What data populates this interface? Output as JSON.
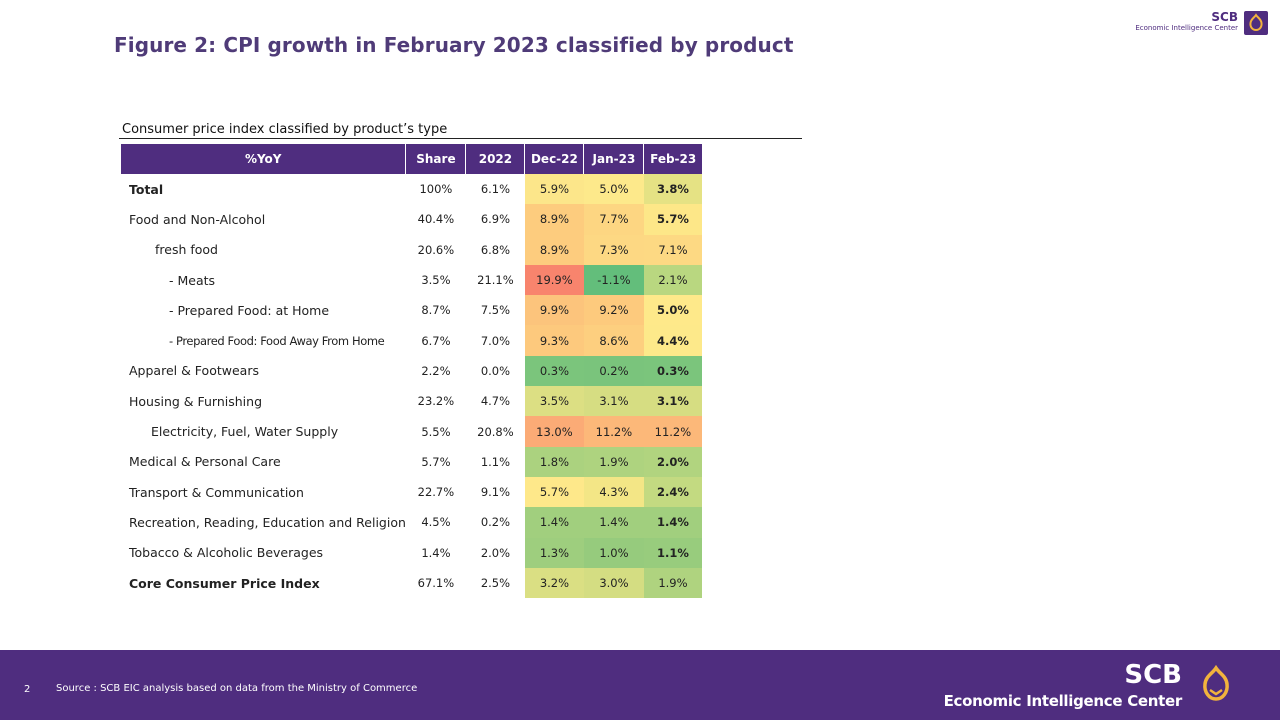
{
  "title": "Figure 2: CPI growth in February 2023 classified by product",
  "logo_top": {
    "brand": "SCB",
    "subtitle": "Economic Intelligence Center"
  },
  "table": {
    "caption": "Consumer price index classified by product’s type",
    "headers": [
      "%YoY",
      "Share",
      "2022",
      "Dec-22",
      "Jan-23",
      "Feb-23"
    ],
    "rows": [
      {
        "label": "Total",
        "share": "100%",
        "y2022": "6.1%",
        "dec22": "5.9%",
        "jan23": "5.0%",
        "feb23": "3.8%"
      },
      {
        "label": "Food and Non-Alcohol",
        "share": "40.4%",
        "y2022": "6.9%",
        "dec22": "8.9%",
        "jan23": "7.7%",
        "feb23": "5.7%"
      },
      {
        "label": "fresh food",
        "share": "20.6%",
        "y2022": "6.8%",
        "dec22": "8.9%",
        "jan23": "7.3%",
        "feb23": "7.1%"
      },
      {
        "label": "- Meats",
        "share": "3.5%",
        "y2022": "21.1%",
        "dec22": "19.9%",
        "jan23": "-1.1%",
        "feb23": "2.1%"
      },
      {
        "label": "- Prepared Food: at Home",
        "share": "8.7%",
        "y2022": "7.5%",
        "dec22": "9.9%",
        "jan23": "9.2%",
        "feb23": "5.0%"
      },
      {
        "label": "- Prepared Food: Food Away From Home",
        "share": "6.7%",
        "y2022": "7.0%",
        "dec22": "9.3%",
        "jan23": "8.6%",
        "feb23": "4.4%"
      },
      {
        "label": "Apparel & Footwears",
        "share": "2.2%",
        "y2022": "0.0%",
        "dec22": "0.3%",
        "jan23": "0.2%",
        "feb23": "0.3%"
      },
      {
        "label": "Housing & Furnishing",
        "share": "23.2%",
        "y2022": "4.7%",
        "dec22": "3.5%",
        "jan23": "3.1%",
        "feb23": "3.1%"
      },
      {
        "label": "Electricity, Fuel, Water Supply",
        "share": "5.5%",
        "y2022": "20.8%",
        "dec22": "13.0%",
        "jan23": "11.2%",
        "feb23": "11.2%"
      },
      {
        "label": "Medical & Personal Care",
        "share": "5.7%",
        "y2022": "1.1%",
        "dec22": "1.8%",
        "jan23": "1.9%",
        "feb23": "2.0%"
      },
      {
        "label": "Transport & Communication",
        "share": "22.7%",
        "y2022": "9.1%",
        "dec22": "5.7%",
        "jan23": "4.3%",
        "feb23": "2.4%"
      },
      {
        "label": "Recreation, Reading, Education and Religion",
        "share": "4.5%",
        "y2022": "0.2%",
        "dec22": "1.4%",
        "jan23": "1.4%",
        "feb23": "1.4%"
      },
      {
        "label": "Tobacco & Alcoholic Beverages",
        "share": "1.4%",
        "y2022": "2.0%",
        "dec22": "1.3%",
        "jan23": "1.0%",
        "feb23": "1.1%"
      },
      {
        "label": "Core Consumer Price Index",
        "share": "67.1%",
        "y2022": "2.5%",
        "dec22": "3.2%",
        "jan23": "3.0%",
        "feb23": "1.9%"
      }
    ]
  },
  "footer": {
    "page_number": "2",
    "source": "Source : SCB EIC analysis based on data from the Ministry of Commerce",
    "brand": "SCB",
    "subtitle": "Economic Intelligence Center"
  },
  "colors": {
    "brand_purple": "#4f2d7f",
    "title_purple": "#4f3b78",
    "logo_gold": "#f2b33d"
  },
  "icons": {
    "logo_emblem": "scb-emblem-icon"
  }
}
